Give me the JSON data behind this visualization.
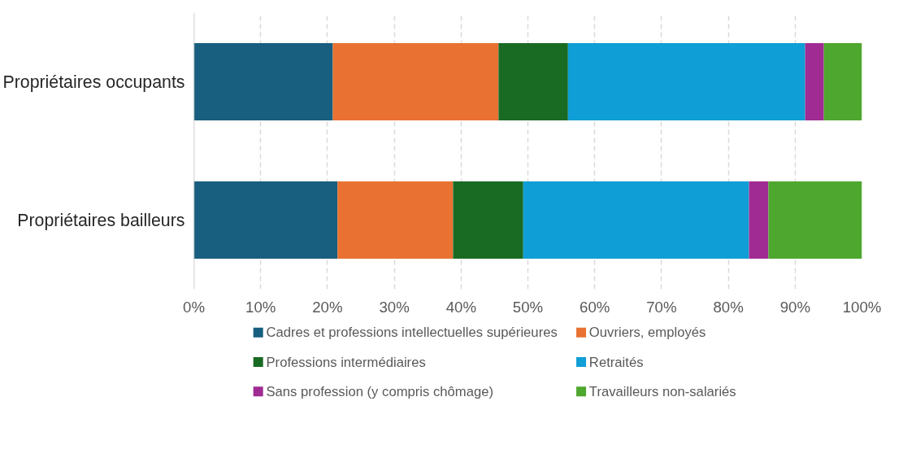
{
  "chart_data": {
    "type": "bar",
    "orientation": "horizontal",
    "stacked": true,
    "categories": [
      "Propriétaires occupants",
      "Propriétaires bailleurs"
    ],
    "series": [
      {
        "name": "Cadres et professions intellectuelles supérieures",
        "color": "#175e7f",
        "values": [
          20.8,
          21.5
        ]
      },
      {
        "name": "Ouvriers, employés",
        "color": "#e97132",
        "values": [
          24.8,
          17.3
        ]
      },
      {
        "name": "Professions intermédiaires",
        "color": "#196b24",
        "values": [
          10.4,
          10.5
        ]
      },
      {
        "name": "Retraités",
        "color": "#0f9ed5",
        "values": [
          35.5,
          33.8
        ]
      },
      {
        "name": "Sans profession (y compris chômage)",
        "color": "#a02b93",
        "values": [
          2.8,
          2.9
        ]
      },
      {
        "name": "Travailleurs non-salariés",
        "color": "#4ea72e",
        "values": [
          5.7,
          14.0
        ]
      }
    ],
    "xlim": [
      0,
      100
    ],
    "xticks": [
      {
        "value": 0,
        "label": "0%"
      },
      {
        "value": 10,
        "label": "10%"
      },
      {
        "value": 20,
        "label": "20%"
      },
      {
        "value": 30,
        "label": "30%"
      },
      {
        "value": 40,
        "label": "40%"
      },
      {
        "value": 50,
        "label": "50%"
      },
      {
        "value": 60,
        "label": "60%"
      },
      {
        "value": 70,
        "label": "70%"
      },
      {
        "value": 80,
        "label": "80%"
      },
      {
        "value": 90,
        "label": "90%"
      },
      {
        "value": 100,
        "label": "100%"
      }
    ],
    "grid": "x",
    "legend": "bottom"
  }
}
